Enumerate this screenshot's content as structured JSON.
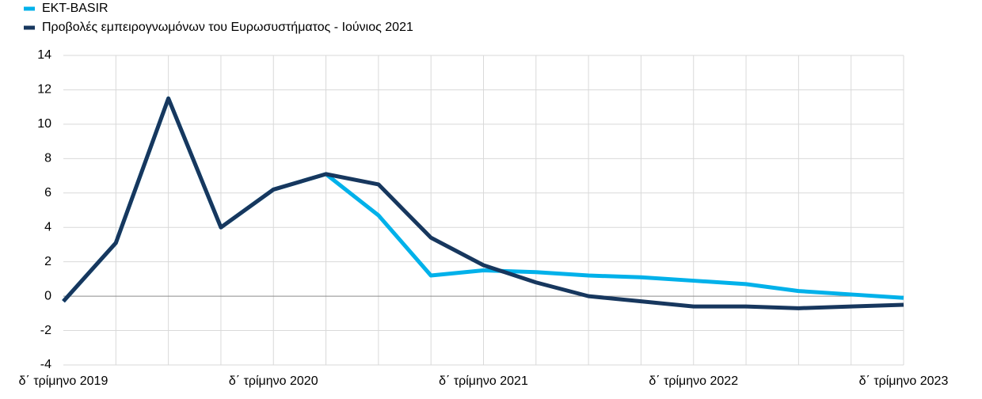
{
  "chart_data": {
    "type": "line",
    "categories": [
      "δ΄ τρίμηνο 2019",
      null,
      null,
      null,
      "δ΄ τρίμηνο 2020",
      null,
      null,
      null,
      "δ΄ τρίμηνο 2021",
      null,
      null,
      null,
      "δ΄ τρίμηνο 2022",
      null,
      null,
      null,
      "δ΄ τρίμηνο 2023"
    ],
    "series": [
      {
        "name": "EKT-BASIR",
        "color": "#00b1ea",
        "values": [
          -0.3,
          3.1,
          11.5,
          4.0,
          6.2,
          7.1,
          4.7,
          1.2,
          1.5,
          1.4,
          1.2,
          1.1,
          0.9,
          0.7,
          0.3,
          0.1,
          -0.1
        ]
      },
      {
        "name": "Προβολές εμπειρογνωμόνων του Ευρωσυστήματος - Ιούνιος 2021",
        "color": "#17375e",
        "values": [
          -0.3,
          3.1,
          11.5,
          4.0,
          6.2,
          7.1,
          6.5,
          3.4,
          1.8,
          0.8,
          0.0,
          -0.3,
          -0.6,
          -0.6,
          -0.7,
          -0.6,
          -0.5
        ]
      }
    ],
    "ylim": [
      -4,
      14
    ],
    "yticks": [
      -4,
      -2,
      0,
      2,
      4,
      6,
      8,
      10,
      12,
      14
    ],
    "grid": true
  }
}
